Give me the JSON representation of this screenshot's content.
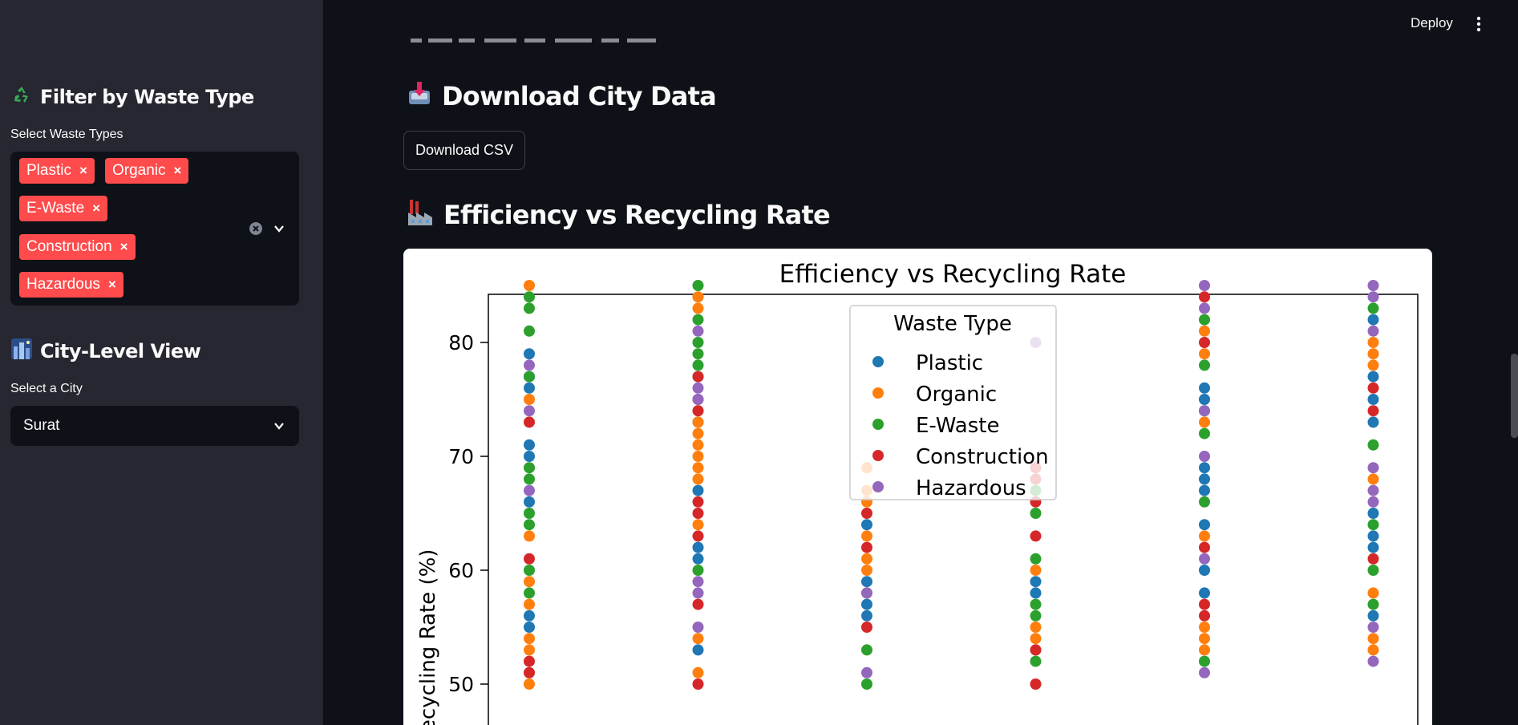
{
  "sidebar": {
    "waste_filter": {
      "heading": "Filter by Waste Type",
      "heading_icon": "recycle-icon",
      "label": "Select Waste Types",
      "selected": [
        "Plastic",
        "Organic",
        "E-Waste",
        "Construction",
        "Hazardous"
      ]
    },
    "city_view": {
      "heading": "City-Level View",
      "heading_icon": "cityscape-icon",
      "label": "Select a City",
      "value": "Surat"
    }
  },
  "header": {
    "deploy_label": "Deploy",
    "menu_icon": "kebab-menu-icon"
  },
  "main": {
    "download_section": {
      "heading": "Download City Data",
      "heading_icon": "inbox-tray-icon",
      "button_label": "Download CSV"
    },
    "efficiency_section": {
      "heading": "Efficiency vs Recycling Rate",
      "heading_icon": "factory-icon"
    }
  },
  "colors": {
    "accent": "#ff4b4b",
    "background": "#0e1117",
    "sidebar": "#262730",
    "series": {
      "Plastic": "#1f77b4",
      "Organic": "#ff7f0e",
      "E-Waste": "#2ca02c",
      "Construction": "#d62728",
      "Hazardous": "#9467bd"
    }
  },
  "chart_data": {
    "type": "scatter",
    "title": "Efficiency vs Recycling Rate",
    "ylabel": "Recycling Rate (%)",
    "xlabel": "",
    "ylim": [
      47,
      87
    ],
    "yticks": [
      "50",
      "60",
      "70",
      "80"
    ],
    "grid": false,
    "legend": {
      "title": "Waste Type",
      "placement": "top-center"
    },
    "series": [
      {
        "name": "Plastic",
        "points": [
          [
            1,
            79
          ],
          [
            1,
            77
          ],
          [
            1,
            76
          ],
          [
            1,
            71
          ],
          [
            1,
            70
          ],
          [
            1,
            66
          ],
          [
            1,
            56
          ],
          [
            1,
            55
          ],
          [
            2,
            77
          ],
          [
            2,
            73
          ],
          [
            2,
            67
          ],
          [
            2,
            62
          ],
          [
            2,
            61
          ],
          [
            2,
            53
          ],
          [
            3,
            64
          ],
          [
            3,
            59
          ],
          [
            3,
            57
          ],
          [
            3,
            56
          ],
          [
            4,
            59
          ],
          [
            4,
            58
          ],
          [
            5,
            76
          ],
          [
            5,
            75
          ],
          [
            5,
            74
          ],
          [
            5,
            69
          ],
          [
            5,
            68
          ],
          [
            5,
            67
          ],
          [
            5,
            64
          ],
          [
            5,
            60
          ],
          [
            5,
            58
          ],
          [
            6,
            82
          ],
          [
            6,
            77
          ],
          [
            6,
            75
          ],
          [
            6,
            73
          ],
          [
            6,
            65
          ],
          [
            6,
            63
          ],
          [
            6,
            62
          ],
          [
            6,
            56
          ]
        ]
      },
      {
        "name": "Organic",
        "points": [
          [
            1,
            85
          ],
          [
            1,
            75
          ],
          [
            1,
            63
          ],
          [
            1,
            59
          ],
          [
            1,
            57
          ],
          [
            1,
            54
          ],
          [
            1,
            53
          ],
          [
            1,
            51
          ],
          [
            1,
            50
          ],
          [
            2,
            84
          ],
          [
            2,
            83
          ],
          [
            2,
            73
          ],
          [
            2,
            72
          ],
          [
            2,
            71
          ],
          [
            2,
            70
          ],
          [
            2,
            69
          ],
          [
            2,
            68
          ],
          [
            2,
            64
          ],
          [
            2,
            54
          ],
          [
            2,
            51
          ],
          [
            3,
            69
          ],
          [
            3,
            67
          ],
          [
            3,
            66
          ],
          [
            3,
            63
          ],
          [
            3,
            61
          ],
          [
            3,
            60
          ],
          [
            3,
            58
          ],
          [
            4,
            60
          ],
          [
            4,
            55
          ],
          [
            4,
            54
          ],
          [
            4,
            53
          ],
          [
            5,
            81
          ],
          [
            5,
            79
          ],
          [
            5,
            73
          ],
          [
            5,
            63
          ],
          [
            5,
            55
          ],
          [
            5,
            54
          ],
          [
            5,
            53
          ],
          [
            6,
            80
          ],
          [
            6,
            79
          ],
          [
            6,
            78
          ],
          [
            6,
            68
          ],
          [
            6,
            58
          ],
          [
            6,
            54
          ],
          [
            6,
            53
          ]
        ]
      },
      {
        "name": "E-Waste",
        "points": [
          [
            1,
            84
          ],
          [
            1,
            83
          ],
          [
            1,
            81
          ],
          [
            1,
            77
          ],
          [
            1,
            69
          ],
          [
            1,
            68
          ],
          [
            1,
            65
          ],
          [
            1,
            64
          ],
          [
            1,
            60
          ],
          [
            1,
            58
          ],
          [
            2,
            85
          ],
          [
            2,
            82
          ],
          [
            2,
            80
          ],
          [
            2,
            79
          ],
          [
            2,
            78
          ],
          [
            2,
            74
          ],
          [
            2,
            60
          ],
          [
            3,
            53
          ],
          [
            3,
            50
          ],
          [
            4,
            67
          ],
          [
            4,
            65
          ],
          [
            4,
            61
          ],
          [
            4,
            57
          ],
          [
            4,
            56
          ],
          [
            4,
            52
          ],
          [
            5,
            82
          ],
          [
            5,
            78
          ],
          [
            5,
            72
          ],
          [
            5,
            66
          ],
          [
            5,
            52
          ],
          [
            6,
            83
          ],
          [
            6,
            71
          ],
          [
            6,
            64
          ],
          [
            6,
            60
          ],
          [
            6,
            57
          ]
        ]
      },
      {
        "name": "Construction",
        "points": [
          [
            1,
            73
          ],
          [
            1,
            61
          ],
          [
            1,
            52
          ],
          [
            1,
            51
          ],
          [
            2,
            77
          ],
          [
            2,
            75
          ],
          [
            2,
            74
          ],
          [
            2,
            66
          ],
          [
            2,
            65
          ],
          [
            2,
            63
          ],
          [
            2,
            57
          ],
          [
            2,
            50
          ],
          [
            3,
            65
          ],
          [
            3,
            62
          ],
          [
            3,
            55
          ],
          [
            4,
            69
          ],
          [
            4,
            68
          ],
          [
            4,
            66
          ],
          [
            4,
            63
          ],
          [
            4,
            53
          ],
          [
            4,
            50
          ],
          [
            5,
            84
          ],
          [
            5,
            80
          ],
          [
            5,
            62
          ],
          [
            5,
            57
          ],
          [
            5,
            56
          ],
          [
            6,
            76
          ],
          [
            6,
            74
          ],
          [
            6,
            61
          ]
        ]
      },
      {
        "name": "Hazardous",
        "points": [
          [
            1,
            78
          ],
          [
            1,
            74
          ],
          [
            1,
            67
          ],
          [
            2,
            81
          ],
          [
            2,
            76
          ],
          [
            2,
            75
          ],
          [
            2,
            59
          ],
          [
            2,
            58
          ],
          [
            2,
            55
          ],
          [
            3,
            58
          ],
          [
            3,
            51
          ],
          [
            4,
            80
          ],
          [
            5,
            85
          ],
          [
            5,
            83
          ],
          [
            5,
            74
          ],
          [
            5,
            70
          ],
          [
            5,
            61
          ],
          [
            5,
            51
          ],
          [
            6,
            85
          ],
          [
            6,
            84
          ],
          [
            6,
            81
          ],
          [
            6,
            69
          ],
          [
            6,
            67
          ],
          [
            6,
            66
          ],
          [
            6,
            55
          ],
          [
            6,
            52
          ]
        ]
      }
    ]
  }
}
